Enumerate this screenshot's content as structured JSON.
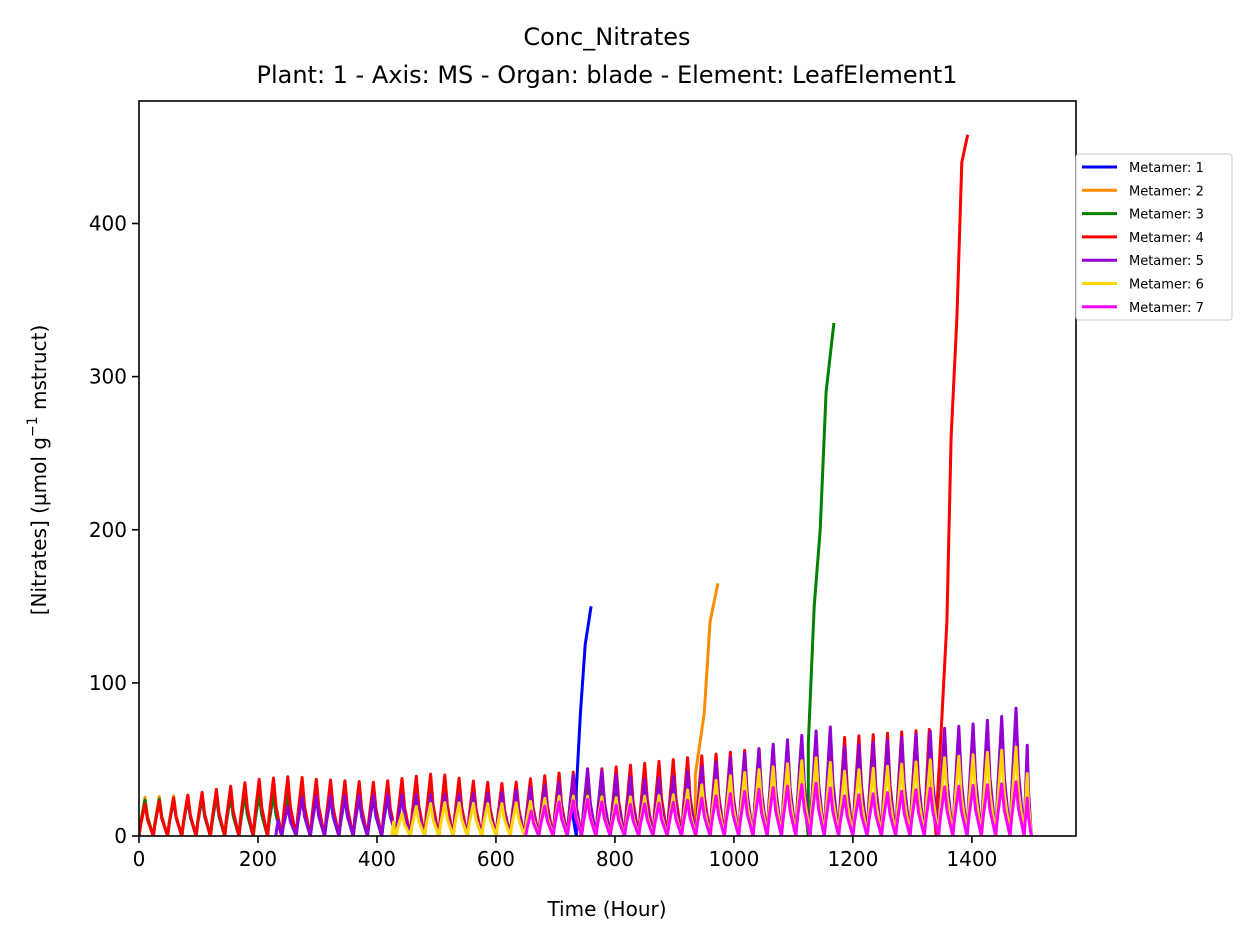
{
  "chart_data": {
    "type": "line",
    "title": "Conc_Nitrates",
    "subtitle": "Plant: 1 - Axis: MS - Organ: blade - Element: LeafElement1",
    "xlabel": "Time (Hour)",
    "ylabel_main": "[Nitrates] (µmol g",
    "ylabel_sup": "−1",
    "ylabel_tail": " mstruct)",
    "xlim": [
      0,
      1575
    ],
    "ylim": [
      0,
      480
    ],
    "xticks": [
      0,
      200,
      400,
      600,
      800,
      1000,
      1200,
      1400
    ],
    "yticks": [
      0,
      100,
      200,
      300,
      400
    ],
    "grid": false,
    "legend_position": "outside-right-top",
    "period_hours": 24,
    "series": [
      {
        "name": "Metamer: 1",
        "color": "#0000ff",
        "oscillation": {
          "start": 0,
          "end": 735,
          "baseline": 0,
          "peaks": [
            [
              0,
              22
            ],
            [
              100,
              25
            ],
            [
              200,
              28
            ],
            [
              300,
              25
            ],
            [
              400,
              25
            ],
            [
              500,
              27
            ],
            [
              600,
              26
            ],
            [
              735,
              28
            ]
          ]
        },
        "surge": [
          [
            735,
            30
          ],
          [
            742,
            80
          ],
          [
            750,
            125
          ],
          [
            760,
            150
          ]
        ]
      },
      {
        "name": "Metamer: 2",
        "color": "#ff8c00",
        "oscillation": {
          "start": 0,
          "end": 935,
          "baseline": 0,
          "peaks": [
            [
              0,
              25
            ],
            [
              100,
              27
            ],
            [
              200,
              30
            ],
            [
              300,
              27
            ],
            [
              400,
              27
            ],
            [
              500,
              29
            ],
            [
              600,
              29
            ],
            [
              700,
              32
            ],
            [
              800,
              35
            ],
            [
              935,
              40
            ]
          ]
        },
        "surge": [
          [
            935,
            40
          ],
          [
            950,
            80
          ],
          [
            960,
            140
          ],
          [
            973,
            165
          ]
        ]
      },
      {
        "name": "Metamer: 3",
        "color": "#008000",
        "oscillation": {
          "start": 0,
          "end": 1125,
          "baseline": 0,
          "peaks": [
            [
              0,
              23
            ],
            [
              100,
              26
            ],
            [
              200,
              28
            ],
            [
              300,
              27
            ],
            [
              400,
              27
            ],
            [
              500,
              29
            ],
            [
              600,
              30
            ],
            [
              700,
              33
            ],
            [
              800,
              36
            ],
            [
              900,
              40
            ],
            [
              1000,
              48
            ],
            [
              1125,
              60
            ]
          ]
        },
        "surge": [
          [
            1125,
            60
          ],
          [
            1135,
            150
          ],
          [
            1145,
            200
          ],
          [
            1155,
            290
          ],
          [
            1168,
            335
          ]
        ]
      },
      {
        "name": "Metamer: 4",
        "color": "#ff0000",
        "oscillation": {
          "start": 0,
          "end": 1340,
          "baseline": 0,
          "peaks": [
            [
              0,
              20
            ],
            [
              60,
              25
            ],
            [
              100,
              28
            ],
            [
              160,
              33
            ],
            [
              200,
              37
            ],
            [
              260,
              39
            ],
            [
              300,
              37
            ],
            [
              400,
              35
            ],
            [
              500,
              41
            ],
            [
              560,
              36
            ],
            [
              620,
              34
            ],
            [
              700,
              41
            ],
            [
              740,
              42
            ],
            [
              800,
              45
            ],
            [
              900,
              50
            ],
            [
              1000,
              55
            ],
            [
              1100,
              60
            ],
            [
              1200,
              65
            ],
            [
              1340,
              70
            ]
          ]
        },
        "surge": [
          [
            1340,
            10
          ],
          [
            1350,
            80
          ],
          [
            1358,
            140
          ],
          [
            1365,
            260
          ],
          [
            1375,
            340
          ],
          [
            1383,
            440
          ],
          [
            1393,
            458
          ]
        ]
      },
      {
        "name": "Metamer: 5",
        "color": "#9400d3",
        "oscillation": {
          "start": 230,
          "end": 1500,
          "baseline": 0,
          "peaks": [
            [
              230,
              8
            ],
            [
              260,
              25
            ],
            [
              300,
              26
            ],
            [
              400,
              27
            ],
            [
              500,
              27
            ],
            [
              600,
              28
            ],
            [
              700,
              34
            ],
            [
              760,
              45
            ],
            [
              800,
              40
            ],
            [
              850,
              37
            ],
            [
              900,
              39
            ],
            [
              950,
              46
            ],
            [
              1000,
              52
            ],
            [
              1050,
              58
            ],
            [
              1100,
              64
            ],
            [
              1150,
              70
            ],
            [
              1170,
              72
            ],
            [
              1180,
              58
            ],
            [
              1250,
              62
            ],
            [
              1300,
              66
            ],
            [
              1350,
              70
            ],
            [
              1400,
              73
            ],
            [
              1450,
              78
            ],
            [
              1485,
              86
            ],
            [
              1500,
              36
            ]
          ]
        },
        "surge": []
      },
      {
        "name": "Metamer: 6",
        "color": "#ffd700",
        "oscillation": {
          "start": 425,
          "end": 1500,
          "baseline": 0,
          "peaks": [
            [
              425,
              8
            ],
            [
              450,
              18
            ],
            [
              500,
              22
            ],
            [
              600,
              21
            ],
            [
              650,
              22
            ],
            [
              700,
              26
            ],
            [
              760,
              26
            ],
            [
              800,
              25
            ],
            [
              900,
              27
            ],
            [
              950,
              34
            ],
            [
              1000,
              40
            ],
            [
              1050,
              44
            ],
            [
              1100,
              48
            ],
            [
              1150,
              52
            ],
            [
              1180,
              42
            ],
            [
              1250,
              45
            ],
            [
              1300,
              48
            ],
            [
              1350,
              51
            ],
            [
              1400,
              53
            ],
            [
              1450,
              56
            ],
            [
              1485,
              59
            ],
            [
              1500,
              25
            ]
          ]
        },
        "surge": []
      },
      {
        "name": "Metamer: 7",
        "color": "#ff00ff",
        "oscillation": {
          "start": 650,
          "end": 1500,
          "baseline": 0,
          "peaks": [
            [
              650,
              15
            ],
            [
              700,
              22
            ],
            [
              760,
              24
            ],
            [
              800,
              20
            ],
            [
              900,
              22
            ],
            [
              950,
              25
            ],
            [
              1000,
              28
            ],
            [
              1050,
              31
            ],
            [
              1100,
              33
            ],
            [
              1150,
              35
            ],
            [
              1180,
              26
            ],
            [
              1250,
              28
            ],
            [
              1300,
              30
            ],
            [
              1350,
              32
            ],
            [
              1400,
              33
            ],
            [
              1450,
              34
            ],
            [
              1485,
              36
            ],
            [
              1500,
              15
            ]
          ]
        },
        "surge": []
      }
    ]
  }
}
